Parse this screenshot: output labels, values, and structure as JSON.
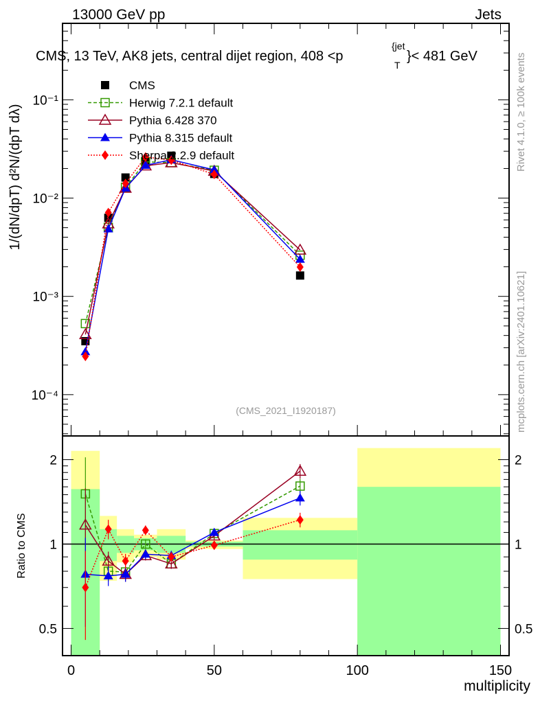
{
  "header": {
    "left": "13000 GeV pp",
    "right": "Jets"
  },
  "side_labels": {
    "rivet": "Rivet 4.1.0, ≥ 100k events",
    "mcplots": "mcplots.cern.ch [arXiv:2401.10621]"
  },
  "chart_data": [
    {
      "type": "line",
      "title": "CMS, 13 TeV, AK8 jets, central dijet region, 408 <p_T^{jet}< 481 GeV",
      "title_main": "CMS, 13 TeV, AK8 jets, central dijet region, 408 <p",
      "title_sup": "{jet",
      "title_sub": "T",
      "title_end": "}< 481 GeV",
      "ylabel": "1/(dN/dpT) d²N/(dpT dλ)",
      "yscale": "log",
      "ylim": [
        3.8e-05,
        0.6
      ],
      "xlim": [
        -3,
        153
      ],
      "yticks": [
        {
          "v": 0.1,
          "label": "10⁻¹"
        },
        {
          "v": 0.01,
          "label": "10⁻²"
        },
        {
          "v": 0.001,
          "label": "10⁻³"
        },
        {
          "v": 0.0001,
          "label": "10⁻⁴"
        }
      ],
      "analysis_label": "(CMS_2021_I1920187)",
      "x": [
        5,
        13,
        19,
        26,
        35,
        50,
        80
      ],
      "bins": [
        [
          0,
          10
        ],
        [
          10,
          16
        ],
        [
          16,
          22
        ],
        [
          22,
          30
        ],
        [
          30,
          40
        ],
        [
          40,
          60
        ],
        [
          60,
          100
        ],
        [
          100,
          150
        ]
      ],
      "cms": [
        0.00035,
        0.0063,
        0.0162,
        0.0234,
        0.027,
        0.0176,
        0.00163
      ],
      "legend": "top-left",
      "series": [
        {
          "name": "CMS",
          "color": "#000000",
          "marker": "square"
        },
        {
          "name": "Herwig 7.2.1 default",
          "color": "#339900",
          "marker": "open-square",
          "dash": "5,3"
        },
        {
          "name": "Pythia 6.428 370",
          "color": "#990022",
          "marker": "open-triangle",
          "dash": ""
        },
        {
          "name": "Pythia 8.315 default",
          "color": "#0000ee",
          "marker": "triangle",
          "dash": ""
        },
        {
          "name": "Sherpa 2.2.9 default",
          "color": "#ff0000",
          "marker": "diamond",
          "dash": "2,2"
        }
      ]
    },
    {
      "type": "line",
      "ylabel": "Ratio to CMS",
      "xlabel": "multiplicity",
      "yscale": "log",
      "ylim": [
        0.4,
        2.43
      ],
      "xlim": [
        -3,
        153
      ],
      "xticks": [
        0,
        50,
        100,
        150
      ],
      "yticks": [
        {
          "v": 0.5,
          "label": "0.5"
        },
        {
          "v": 1,
          "label": "1"
        },
        {
          "v": 2,
          "label": "2"
        }
      ],
      "band_green": [
        [
          0.39,
          1.57
        ],
        [
          0.87,
          1.13
        ],
        [
          0.93,
          1.07
        ],
        [
          0.95,
          1.05
        ],
        [
          0.93,
          1.07
        ],
        [
          0.98,
          1.02
        ],
        [
          0.88,
          1.12
        ],
        [
          0.3,
          1.6
        ]
      ],
      "band_yellow": [
        [
          0.3,
          2.15
        ],
        [
          0.74,
          1.26
        ],
        [
          0.86,
          1.13
        ],
        [
          0.9,
          1.08
        ],
        [
          0.88,
          1.13
        ],
        [
          0.96,
          1.03
        ],
        [
          0.75,
          1.24
        ],
        [
          0.3,
          2.2
        ]
      ],
      "ratios": {
        "Herwig 7.2.1 default": [
          1.51,
          0.8,
          0.795,
          1.0,
          0.85,
          1.09,
          1.61
        ],
        "Pythia 6.428 370": [
          1.17,
          0.87,
          0.78,
          0.91,
          0.85,
          1.07,
          1.82
        ],
        "Pythia 8.315 default": [
          0.78,
          0.77,
          0.78,
          0.92,
          0.91,
          1.1,
          1.46
        ],
        "Sherpa 2.2.9 default": [
          0.7,
          1.13,
          0.87,
          1.12,
          0.9,
          0.99,
          1.22
        ]
      },
      "ratio_err": [
        0.35,
        0.08,
        0.06,
        0.04,
        0.04,
        0.03,
        0.06
      ]
    }
  ]
}
